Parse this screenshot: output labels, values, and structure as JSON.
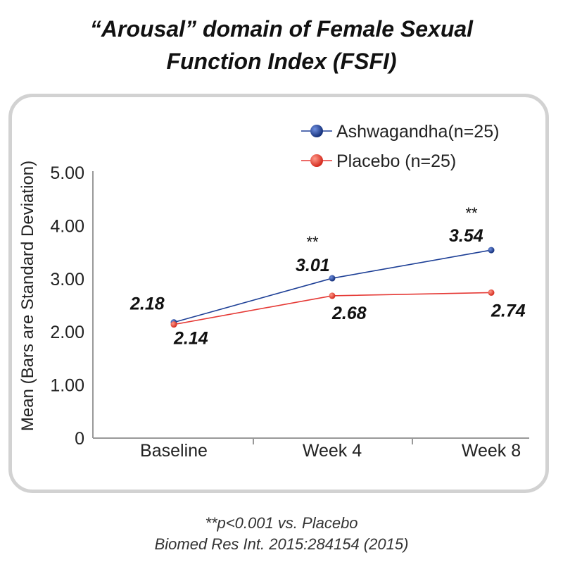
{
  "title_lines": [
    "“Arousal” domain of Female Sexual",
    "Function Index (FSFI)"
  ],
  "footnotes": [
    "**p<0.001 vs. Placebo",
    "Biomed Res Int. 2015:284154 (2015)"
  ],
  "colors": {
    "ashwagandha": "#1d3f96",
    "placebo": "#e53935",
    "axis": "#999999",
    "frame": "#d2d2d2"
  },
  "chart_data": {
    "type": "line",
    "title": "“Arousal” domain of Female Sexual Function Index (FSFI)",
    "xlabel": "",
    "ylabel": "Mean (Bars are Standard Deviation)",
    "categories": [
      "Baseline",
      "Week 4",
      "Week 8"
    ],
    "ylim": [
      0,
      5
    ],
    "yticks": [
      "0",
      "1.00",
      "2.00",
      "3.00",
      "4.00",
      "5.00"
    ],
    "grid": false,
    "legend_position": "top-right",
    "series": [
      {
        "name": "Ashwagandha(n=25)",
        "values": [
          2.18,
          3.01,
          3.54
        ],
        "labels": [
          "2.18",
          "3.01",
          "3.54"
        ],
        "significance": [
          "",
          "**",
          "**"
        ]
      },
      {
        "name": "Placebo (n=25)",
        "values": [
          2.14,
          2.68,
          2.74
        ],
        "labels": [
          "2.14",
          "2.68",
          "2.74"
        ],
        "significance": [
          "",
          "",
          ""
        ]
      }
    ]
  }
}
